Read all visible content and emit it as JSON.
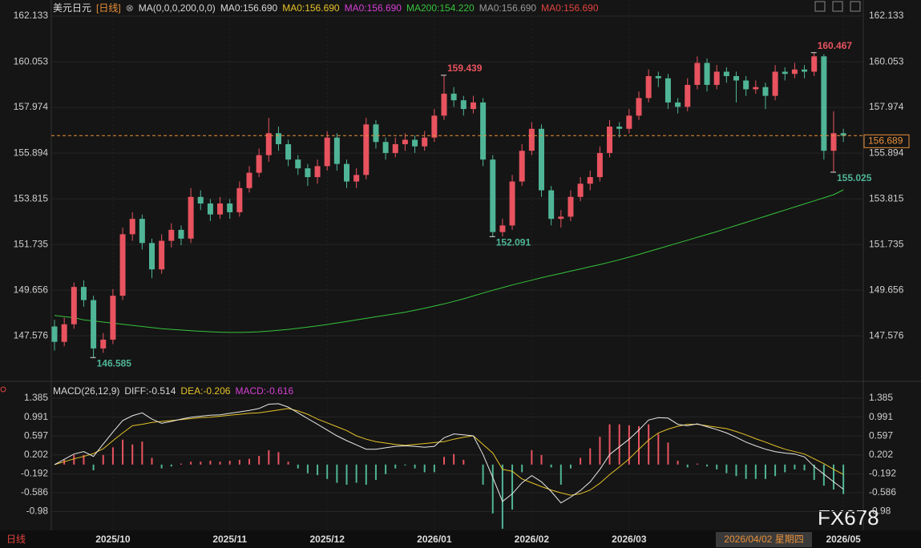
{
  "header": {
    "symbol": "美元日元",
    "period": "[日线]",
    "indicators": [
      {
        "text": "MA(0,0,0,200,0,0)",
        "color": "#d8d8d8"
      },
      {
        "text": "MA0:156.690",
        "color": "#d8d8d8"
      },
      {
        "text": "MA0:156.690",
        "color": "#e6c229"
      },
      {
        "text": "MA0:156.690",
        "color": "#d63fd6"
      },
      {
        "text": "MA200:154.220",
        "color": "#35c43b"
      },
      {
        "text": "MA0:156.690",
        "color": "#9a9a9a"
      },
      {
        "text": "MA0:156.690",
        "color": "#e0433f"
      }
    ]
  },
  "chart_data": [
    {
      "type": "candlestick",
      "up_color": "#e8535f",
      "down_color": "#4fb596",
      "ylim": [
        145.72,
        162.5
      ],
      "yticks": [
        162.133,
        160.053,
        157.974,
        155.894,
        153.815,
        151.735,
        149.656,
        147.576
      ],
      "xticks": [
        {
          "value": 6,
          "label": "2025/10"
        },
        {
          "value": 18,
          "label": "2025/11"
        },
        {
          "value": 28,
          "label": "2025/12"
        },
        {
          "value": 39,
          "label": "2026/01"
        },
        {
          "value": 49,
          "label": "2026/02"
        },
        {
          "value": 59,
          "label": "2026/03"
        },
        {
          "value": 81,
          "label": "2026/05"
        }
      ],
      "last_price": 156.689,
      "last_price_color": "#e8903a",
      "candles": [
        [
          148.0,
          148.3,
          146.9,
          147.3
        ],
        [
          147.3,
          148.4,
          147.1,
          148.1
        ],
        [
          148.1,
          150.0,
          147.9,
          149.8
        ],
        [
          149.8,
          150.1,
          148.9,
          149.2
        ],
        [
          149.2,
          149.4,
          146.585,
          147.0
        ],
        [
          147.0,
          147.7,
          146.8,
          147.4
        ],
        [
          147.4,
          149.7,
          147.2,
          149.4
        ],
        [
          149.4,
          152.5,
          149.2,
          152.2
        ],
        [
          152.2,
          153.2,
          151.9,
          152.9
        ],
        [
          152.9,
          153.1,
          151.5,
          151.8
        ],
        [
          151.8,
          152.0,
          150.2,
          150.6
        ],
        [
          150.6,
          152.2,
          150.4,
          151.9
        ],
        [
          151.9,
          152.7,
          151.6,
          152.4
        ],
        [
          152.4,
          152.6,
          151.7,
          152.0
        ],
        [
          152.0,
          154.3,
          151.8,
          153.9
        ],
        [
          153.9,
          154.2,
          153.3,
          153.6
        ],
        [
          153.6,
          153.8,
          152.8,
          153.1
        ],
        [
          153.1,
          153.9,
          152.9,
          153.6
        ],
        [
          153.6,
          153.8,
          152.9,
          153.2
        ],
        [
          153.2,
          154.6,
          153.0,
          154.3
        ],
        [
          154.3,
          155.3,
          154.1,
          155.0
        ],
        [
          155.0,
          156.1,
          154.8,
          155.8
        ],
        [
          155.8,
          157.5,
          155.5,
          156.8
        ],
        [
          156.8,
          157.1,
          156.0,
          156.3
        ],
        [
          156.3,
          156.5,
          155.3,
          155.6
        ],
        [
          155.6,
          155.8,
          154.9,
          155.2
        ],
        [
          155.2,
          155.4,
          154.4,
          154.8
        ],
        [
          154.8,
          155.6,
          154.5,
          155.3
        ],
        [
          155.3,
          156.9,
          155.1,
          156.6
        ],
        [
          156.6,
          156.8,
          155.1,
          155.4
        ],
        [
          155.4,
          155.6,
          154.3,
          154.6
        ],
        [
          154.6,
          155.2,
          154.3,
          154.9
        ],
        [
          154.9,
          157.5,
          154.7,
          157.2
        ],
        [
          157.2,
          157.4,
          156.1,
          156.4
        ],
        [
          156.4,
          156.6,
          155.6,
          155.9
        ],
        [
          155.9,
          156.6,
          155.7,
          156.3
        ],
        [
          156.3,
          156.8,
          156.0,
          156.5
        ],
        [
          156.5,
          156.7,
          155.9,
          156.2
        ],
        [
          156.2,
          156.9,
          156.0,
          156.6
        ],
        [
          156.6,
          157.9,
          156.4,
          157.6
        ],
        [
          157.6,
          159.439,
          157.4,
          158.6
        ],
        [
          158.6,
          158.9,
          158.0,
          158.3
        ],
        [
          158.3,
          158.5,
          157.6,
          157.9
        ],
        [
          157.9,
          158.5,
          157.7,
          158.2
        ],
        [
          158.2,
          158.4,
          155.3,
          155.6
        ],
        [
          155.6,
          155.8,
          152.091,
          152.3
        ],
        [
          152.3,
          152.9,
          152.1,
          152.6
        ],
        [
          152.6,
          154.9,
          152.4,
          154.6
        ],
        [
          154.6,
          156.3,
          154.4,
          156.0
        ],
        [
          156.0,
          157.3,
          155.8,
          157.0
        ],
        [
          157.0,
          157.2,
          153.9,
          154.2
        ],
        [
          154.2,
          154.4,
          152.6,
          152.9
        ],
        [
          152.9,
          153.3,
          152.5,
          153.0
        ],
        [
          153.0,
          154.2,
          152.8,
          153.9
        ],
        [
          153.9,
          154.8,
          153.7,
          154.5
        ],
        [
          154.5,
          155.1,
          154.2,
          154.8
        ],
        [
          154.8,
          156.2,
          154.6,
          155.9
        ],
        [
          155.9,
          157.4,
          155.7,
          157.1
        ],
        [
          157.1,
          157.3,
          156.6,
          157.0
        ],
        [
          157.0,
          157.9,
          156.8,
          157.6
        ],
        [
          157.6,
          158.7,
          157.4,
          158.4
        ],
        [
          158.4,
          159.7,
          158.2,
          159.4
        ],
        [
          159.4,
          159.6,
          158.9,
          159.3
        ],
        [
          159.3,
          159.5,
          157.9,
          158.2
        ],
        [
          158.2,
          158.4,
          157.7,
          158.0
        ],
        [
          158.0,
          159.3,
          157.8,
          159.0
        ],
        [
          159.0,
          160.3,
          158.8,
          160.0
        ],
        [
          160.0,
          160.2,
          158.7,
          159.0
        ],
        [
          159.0,
          159.9,
          158.8,
          159.6
        ],
        [
          159.6,
          159.8,
          159.1,
          159.4
        ],
        [
          159.4,
          159.6,
          158.2,
          159.2
        ],
        [
          159.2,
          159.4,
          158.5,
          158.8
        ],
        [
          158.8,
          159.2,
          158.6,
          158.9
        ],
        [
          158.9,
          159.1,
          157.9,
          158.5
        ],
        [
          158.5,
          159.9,
          158.3,
          159.6
        ],
        [
          159.6,
          159.8,
          159.2,
          159.5
        ],
        [
          159.5,
          160.0,
          159.3,
          159.7
        ],
        [
          159.7,
          159.9,
          159.3,
          159.6
        ],
        [
          159.6,
          160.467,
          159.4,
          160.3
        ],
        [
          160.3,
          160.4,
          155.6,
          156.0
        ],
        [
          156.0,
          157.8,
          155.025,
          156.8
        ],
        [
          156.8,
          157.0,
          156.4,
          156.689
        ]
      ],
      "ma": {
        "color": "#35c43b",
        "values": [
          148.5,
          148.45,
          148.4,
          148.3,
          148.25,
          148.2,
          148.15,
          148.1,
          148.05,
          148.0,
          147.95,
          147.9,
          147.87,
          147.84,
          147.81,
          147.78,
          147.76,
          147.74,
          147.73,
          147.73,
          147.74,
          147.76,
          147.79,
          147.83,
          147.87,
          147.92,
          147.97,
          148.03,
          148.09,
          148.16,
          148.23,
          148.3,
          148.37,
          148.44,
          148.51,
          148.58,
          148.65,
          148.74,
          148.83,
          148.93,
          149.03,
          149.14,
          149.26,
          149.39,
          149.52,
          149.65,
          149.77,
          149.89,
          150.0,
          150.11,
          150.22,
          150.32,
          150.42,
          150.52,
          150.62,
          150.72,
          150.82,
          150.93,
          151.04,
          151.16,
          151.28,
          151.41,
          151.54,
          151.67,
          151.8,
          151.93,
          152.06,
          152.19,
          152.32,
          152.46,
          152.6,
          152.74,
          152.88,
          153.02,
          153.16,
          153.3,
          153.44,
          153.58,
          153.72,
          153.86,
          154.0,
          154.22
        ]
      }
    },
    {
      "type": "macd",
      "legend": [
        {
          "text": "MACD(26,12,9)",
          "color": "#d8d8d8"
        },
        {
          "text": "DIFF:-0.514",
          "color": "#d8d8d8"
        },
        {
          "text": "DEA:-0.206",
          "color": "#e6c229"
        },
        {
          "text": "MACD:-0.616",
          "color": "#d63fd6"
        }
      ],
      "ylim": [
        -1.34,
        1.67
      ],
      "yticks": [
        1.385,
        0.991,
        0.597,
        0.202,
        -0.192,
        -0.586,
        -0.98
      ],
      "diff": {
        "color": "#e8e8e8",
        "values": [
          0.0,
          0.11,
          0.22,
          0.27,
          0.17,
          0.43,
          0.68,
          0.92,
          1.02,
          1.08,
          0.95,
          0.86,
          0.9,
          0.95,
          0.99,
          1.01,
          1.03,
          1.04,
          1.07,
          1.1,
          1.13,
          1.17,
          1.26,
          1.27,
          1.2,
          1.08,
          0.96,
          0.84,
          0.72,
          0.6,
          0.5,
          0.41,
          0.32,
          0.32,
          0.35,
          0.38,
          0.39,
          0.38,
          0.36,
          0.38,
          0.56,
          0.64,
          0.62,
          0.6,
          0.21,
          -0.27,
          -0.77,
          -0.61,
          -0.38,
          -0.23,
          -0.36,
          -0.56,
          -0.8,
          -0.68,
          -0.54,
          -0.36,
          -0.1,
          0.21,
          0.37,
          0.53,
          0.72,
          0.93,
          0.98,
          0.97,
          0.84,
          0.81,
          0.85,
          0.79,
          0.73,
          0.66,
          0.57,
          0.47,
          0.39,
          0.32,
          0.27,
          0.24,
          0.22,
          0.16,
          -0.04,
          -0.2,
          -0.36,
          -0.514
        ]
      },
      "dea": {
        "color": "#e6c229",
        "values": [
          0.0,
          0.06,
          0.12,
          0.17,
          0.23,
          0.33,
          0.5,
          0.66,
          0.81,
          0.84,
          0.88,
          0.9,
          0.92,
          0.94,
          0.96,
          0.98,
          0.99,
          1.01,
          1.03,
          1.05,
          1.07,
          1.08,
          1.11,
          1.14,
          1.17,
          1.12,
          1.05,
          0.95,
          0.87,
          0.79,
          0.71,
          0.6,
          0.53,
          0.48,
          0.45,
          0.42,
          0.4,
          0.42,
          0.44,
          0.46,
          0.48,
          0.53,
          0.57,
          0.6,
          0.42,
          0.24,
          -0.1,
          -0.14,
          -0.3,
          -0.38,
          -0.46,
          -0.53,
          -0.59,
          -0.64,
          -0.61,
          -0.53,
          -0.39,
          -0.21,
          -0.05,
          0.12,
          0.32,
          0.51,
          0.66,
          0.74,
          0.8,
          0.84,
          0.84,
          0.81,
          0.78,
          0.75,
          0.69,
          0.62,
          0.54,
          0.47,
          0.39,
          0.32,
          0.27,
          0.22,
          0.12,
          0.02,
          -0.1,
          -0.206
        ]
      },
      "hist": {
        "up_color": "#e8535f",
        "down_color": "#4fb596",
        "values": [
          0,
          0.1,
          0.2,
          0.2,
          -0.12,
          0.2,
          0.36,
          0.52,
          0.42,
          0.48,
          0.14,
          -0.08,
          -0.04,
          0.02,
          0.06,
          0.06,
          0.08,
          0.06,
          0.08,
          0.1,
          0.12,
          0.18,
          0.3,
          0.26,
          0.06,
          -0.08,
          -0.18,
          -0.22,
          -0.3,
          -0.38,
          -0.42,
          -0.38,
          -0.42,
          -0.32,
          -0.2,
          -0.08,
          -0.02,
          -0.08,
          -0.16,
          -0.16,
          0.16,
          0.22,
          0.1,
          0,
          -0.42,
          -1.02,
          -1.34,
          -0.94,
          -0.16,
          0.3,
          0.2,
          -0.06,
          -0.42,
          -0.08,
          0.14,
          0.34,
          0.58,
          0.84,
          0.84,
          0.82,
          0.8,
          0.84,
          0.64,
          0.46,
          0.08,
          -0.06,
          0.02,
          -0.04,
          -0.1,
          -0.18,
          -0.24,
          -0.3,
          -0.3,
          -0.3,
          -0.24,
          -0.16,
          -0.1,
          -0.12,
          -0.32,
          -0.44,
          -0.52,
          -0.616
        ]
      }
    }
  ],
  "footer": {
    "period": "日线",
    "cursor_date": "2026/04/02 星期四",
    "watermark": "FX678"
  }
}
